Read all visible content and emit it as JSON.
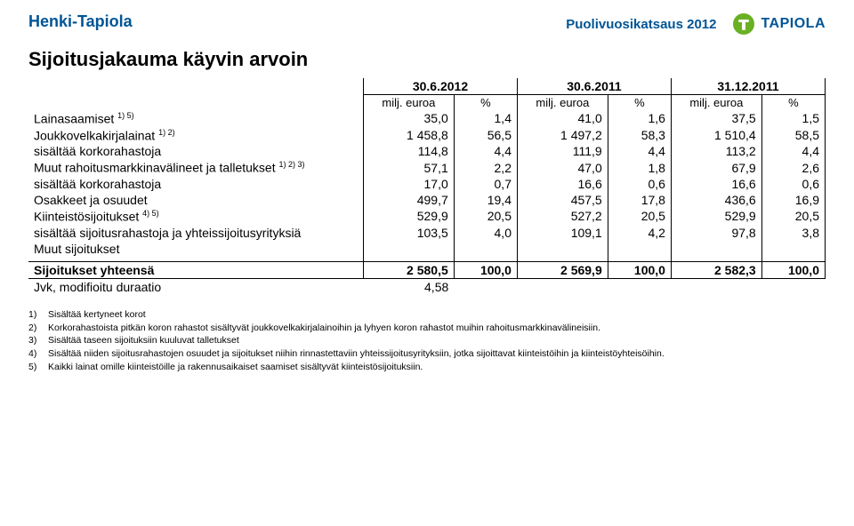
{
  "header": {
    "brand": "Henki-Tapiola",
    "subtitle": "Puolivuosikatsaus 2012",
    "logo_text": "TAPIOLA",
    "logo_green": "#6ab023",
    "logo_blue": "#005596"
  },
  "title": "Sijoitusjakauma käyvin arvoin",
  "dates": [
    "30.6.2012",
    "30.6.2011",
    "31.12.2011"
  ],
  "unit_label": "milj. euroa",
  "pct_label": "%",
  "rows": [
    {
      "label": "Lainasaamiset ",
      "sup": "1) 5)",
      "indent": false,
      "vals": [
        "35,0",
        "1,4",
        "41,0",
        "1,6",
        "37,5",
        "1,5"
      ]
    },
    {
      "label": "Joukkovelkakirjalainat ",
      "sup": "1) 2)",
      "indent": false,
      "vals": [
        "1 458,8",
        "56,5",
        "1 497,2",
        "58,3",
        "1 510,4",
        "58,5"
      ]
    },
    {
      "label": "sisältää korkorahastoja",
      "sup": "",
      "indent": true,
      "vals": [
        "114,8",
        "4,4",
        "111,9",
        "4,4",
        "113,2",
        "4,4"
      ]
    },
    {
      "label": "Muut rahoitusmarkkinavälineet ja talletukset ",
      "sup": "1) 2) 3)",
      "indent": false,
      "vals": [
        "57,1",
        "2,2",
        "47,0",
        "1,8",
        "67,9",
        "2,6"
      ]
    },
    {
      "label": "sisältää korkorahastoja",
      "sup": "",
      "indent": true,
      "vals": [
        "17,0",
        "0,7",
        "16,6",
        "0,6",
        "16,6",
        "0,6"
      ]
    },
    {
      "label": "Osakkeet ja osuudet",
      "sup": "",
      "indent": false,
      "vals": [
        "499,7",
        "19,4",
        "457,5",
        "17,8",
        "436,6",
        "16,9"
      ]
    },
    {
      "label": "Kiinteistösijoitukset ",
      "sup": "4) 5)",
      "indent": false,
      "vals": [
        "529,9",
        "20,5",
        "527,2",
        "20,5",
        "529,9",
        "20,5"
      ]
    },
    {
      "label": "sisältää sijoitusrahastoja ja yhteissijoitusyrityksiä",
      "sup": "",
      "indent": true,
      "vals": [
        "103,5",
        "4,0",
        "109,1",
        "4,2",
        "97,8",
        "3,8"
      ]
    },
    {
      "label": "Muut sijoitukset",
      "sup": "",
      "indent": false,
      "vals": [
        "",
        "",
        "",
        "",
        "",
        ""
      ]
    }
  ],
  "total": {
    "label": "Sijoitukset yhteensä",
    "vals": [
      "2 580,5",
      "100,0",
      "2 569,9",
      "100,0",
      "2 582,3",
      "100,0"
    ]
  },
  "duration": {
    "label": "Jvk, modifioitu duraatio",
    "value": "4,58"
  },
  "footnotes": [
    {
      "n": "1)",
      "t": "Sisältää kertyneet korot"
    },
    {
      "n": "2)",
      "t": "Korkorahastoista pitkän koron rahastot sisältyvät joukkovelkakirjalainoihin ja lyhyen koron rahastot muihin rahoitusmarkkinavälineisiin."
    },
    {
      "n": "3)",
      "t": "Sisältää taseen sijoituksiin kuuluvat talletukset"
    },
    {
      "n": "4)",
      "t": "Sisältää niiden sijoitusrahastojen osuudet ja sijoitukset niihin rinnastettaviin yhteissijoitusyrityksiin, jotka sijoittavat kiinteistöihin ja kiinteistöyhteisöihin."
    },
    {
      "n": "5)",
      "t": "Kaikki lainat omille kiinteistöille ja rakennusaikaiset saamiset sisältyvät kiinteistösijoituksiin."
    }
  ],
  "colors": {
    "heading_blue": "#005596"
  }
}
